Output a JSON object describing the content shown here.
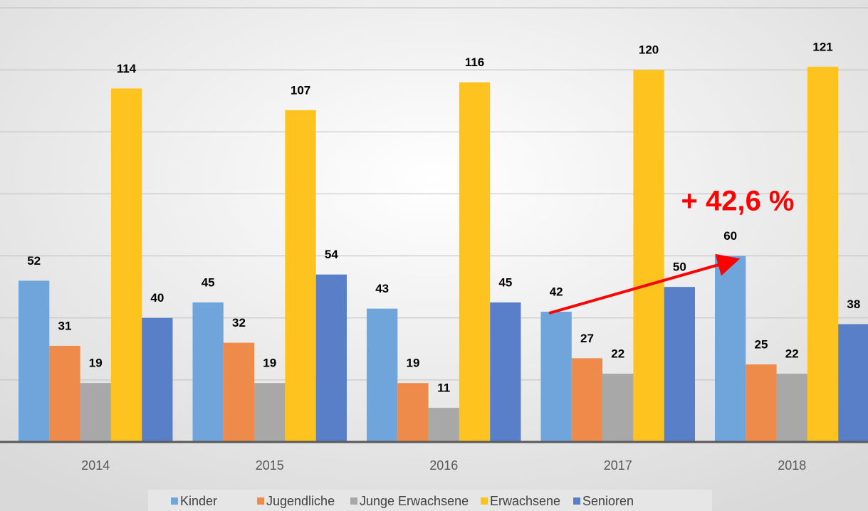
{
  "chart_data": {
    "type": "bar",
    "categories": [
      "2014",
      "2015",
      "2016",
      "2017",
      "2018"
    ],
    "series": [
      {
        "name": "Kinder",
        "color": "#6fa5db",
        "values": [
          52,
          45,
          43,
          42,
          60
        ]
      },
      {
        "name": "Jugendliche",
        "color": "#ee8b4b",
        "values": [
          31,
          32,
          19,
          27,
          25
        ]
      },
      {
        "name": "Junge Erwachsene",
        "color": "#a8a8a8",
        "values": [
          19,
          19,
          11,
          22,
          22
        ]
      },
      {
        "name": "Erwachsene",
        "color": "#ffc320",
        "values": [
          114,
          107,
          116,
          120,
          121
        ]
      },
      {
        "name": "Senioren",
        "color": "#5a7fc9",
        "values": [
          40,
          54,
          45,
          50,
          38
        ]
      }
    ],
    "ylim": [
      0,
      140
    ],
    "yticks": [
      0,
      20,
      40,
      60,
      80,
      100,
      120,
      140
    ],
    "grid": true,
    "annotation": "+ 42,6 %",
    "annotation_color": "#ff0000",
    "legend": "bottom"
  }
}
